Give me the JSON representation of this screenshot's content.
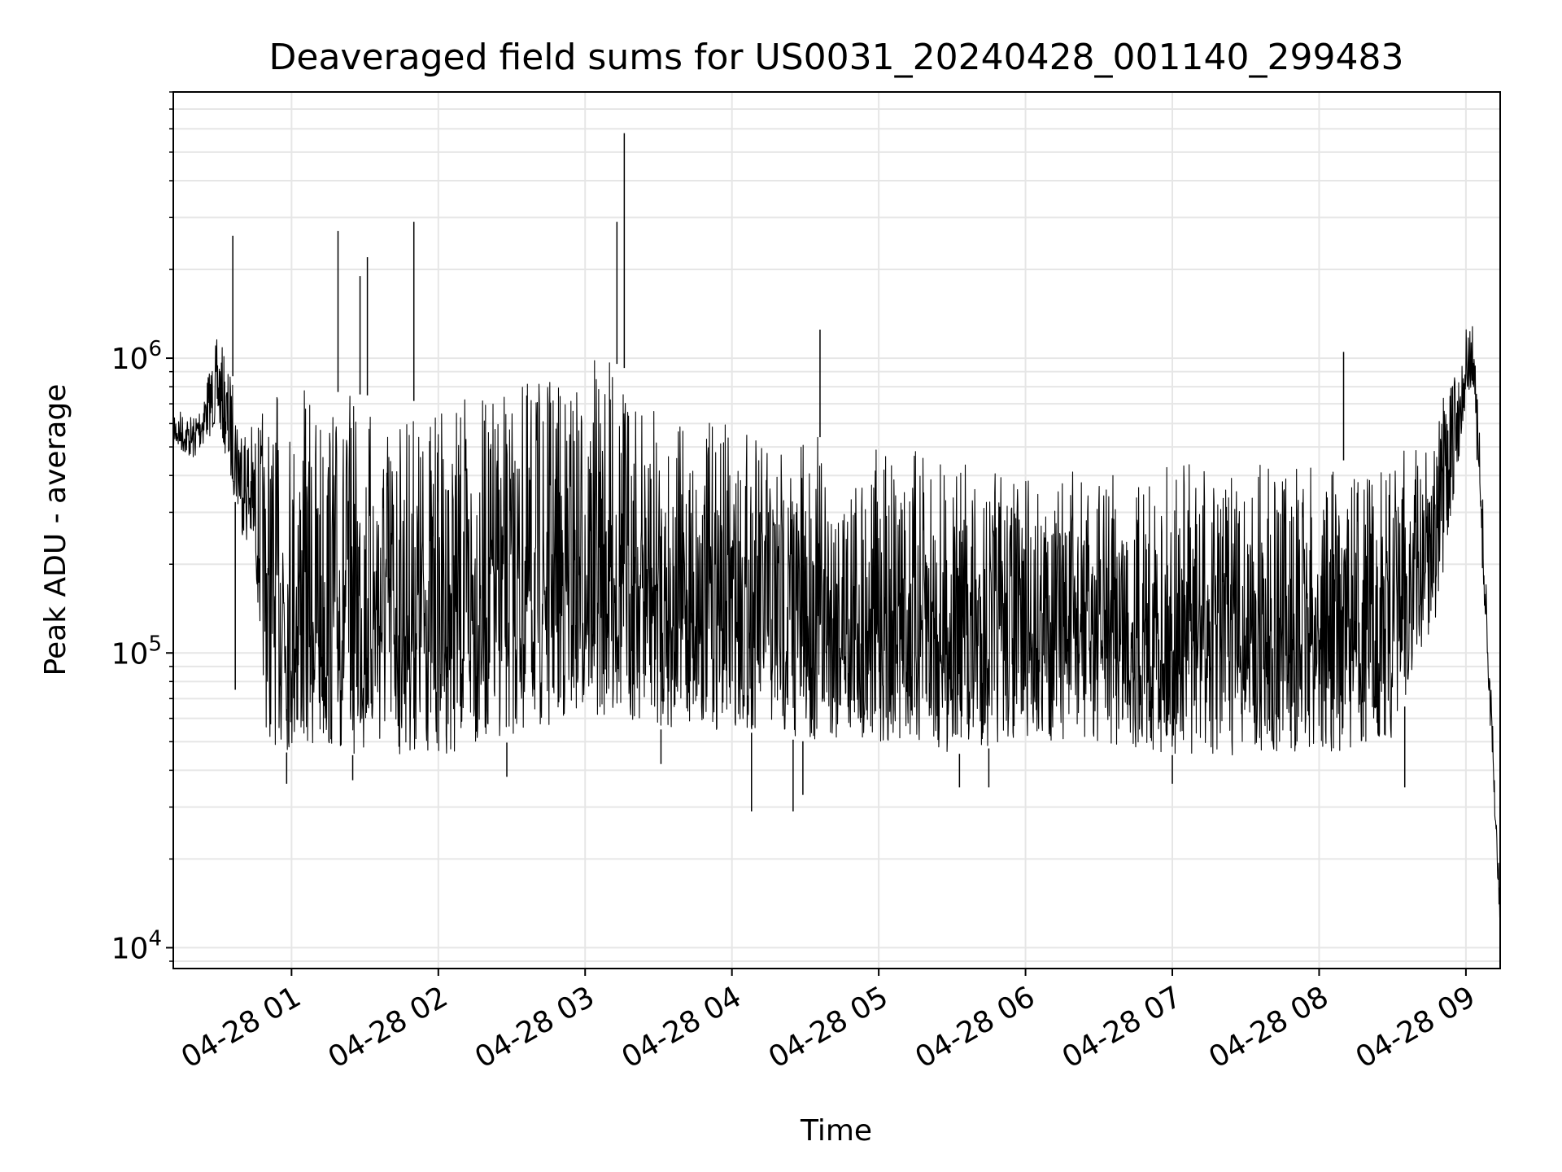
{
  "chart_data": {
    "type": "line",
    "title": "Deaveraged field sums for US0031_20240428_001140_299483",
    "xlabel": "Time",
    "ylabel": "Peak ADU - average",
    "x_range": [
      "2024-04-28 00:11:40",
      "2024-04-28 09:14:00"
    ],
    "ylim": [
      8500,
      8000000
    ],
    "yscale": "log",
    "grid": true,
    "x_ticks": [
      "2024-04-28 01:00",
      "2024-04-28 02:00",
      "2024-04-28 03:00",
      "2024-04-28 04:00",
      "2024-04-28 05:00",
      "2024-04-28 06:00",
      "2024-04-28 07:00",
      "2024-04-28 08:00",
      "2024-04-28 09:00"
    ],
    "x_tick_labels": [
      "04-28 01",
      "04-28 02",
      "04-28 03",
      "04-28 04",
      "04-28 05",
      "04-28 06",
      "04-28 07",
      "04-28 08",
      "04-28 09"
    ],
    "y_ticks": [
      10000,
      100000,
      1000000
    ],
    "y_tick_labels": [
      {
        "base": "10",
        "exp": "4"
      },
      {
        "base": "10",
        "exp": "5"
      },
      {
        "base": "10",
        "exp": "6"
      }
    ],
    "line_color": "#000000",
    "envelope": {
      "time": [
        "2024-04-28 00:11:40",
        "2024-04-28 00:20",
        "2024-04-28 00:30",
        "2024-04-28 00:40",
        "2024-04-28 00:45",
        "2024-04-28 00:50",
        "2024-04-28 01:00",
        "2024-04-28 01:30",
        "2024-04-28 02:00",
        "2024-04-28 02:30",
        "2024-04-28 03:00",
        "2024-04-28 03:15",
        "2024-04-28 03:30",
        "2024-04-28 04:00",
        "2024-04-28 04:30",
        "2024-04-28 05:00",
        "2024-04-28 05:30",
        "2024-04-28 06:00",
        "2024-04-28 06:30",
        "2024-04-28 07:00",
        "2024-04-28 07:30",
        "2024-04-28 08:00",
        "2024-04-28 08:30",
        "2024-04-28 08:50",
        "2024-04-28 09:00",
        "2024-04-28 09:03",
        "2024-04-28 09:06",
        "2024-04-28 09:14"
      ],
      "high": [
        700000,
        650000,
        1200000,
        700000,
        600000,
        750000,
        800000,
        750000,
        700000,
        800000,
        1000000,
        950000,
        650000,
        600000,
        550000,
        500000,
        470000,
        430000,
        420000,
        450000,
        430000,
        450000,
        450000,
        700000,
        1300000,
        1300000,
        500000,
        15000
      ],
      "low": [
        500000,
        450000,
        600000,
        250000,
        200000,
        50000,
        45000,
        45000,
        45000,
        50000,
        60000,
        60000,
        55000,
        55000,
        50000,
        50000,
        45000,
        50000,
        50000,
        45000,
        45000,
        45000,
        50000,
        150000,
        700000,
        800000,
        250000,
        11500
      ]
    },
    "spikes": [
      {
        "time": "2024-04-28 00:36",
        "value": 2600000
      },
      {
        "time": "2024-04-28 01:19",
        "value": 2700000
      },
      {
        "time": "2024-04-28 01:28",
        "value": 1900000
      },
      {
        "time": "2024-04-28 01:31",
        "value": 2200000
      },
      {
        "time": "2024-04-28 01:50",
        "value": 2900000
      },
      {
        "time": "2024-04-28 03:13",
        "value": 2900000
      },
      {
        "time": "2024-04-28 03:16",
        "value": 5800000
      },
      {
        "time": "2024-04-28 04:36",
        "value": 1250000
      },
      {
        "time": "2024-04-28 08:10",
        "value": 1050000
      }
    ],
    "dips": [
      {
        "time": "2024-04-28 00:37",
        "value": 75000
      },
      {
        "time": "2024-04-28 00:58",
        "value": 36000
      },
      {
        "time": "2024-04-28 01:25",
        "value": 37000
      },
      {
        "time": "2024-04-28 02:28",
        "value": 38000
      },
      {
        "time": "2024-04-28 03:31",
        "value": 42000
      },
      {
        "time": "2024-04-28 04:08",
        "value": 29000
      },
      {
        "time": "2024-04-28 04:25",
        "value": 29000
      },
      {
        "time": "2024-04-28 04:29",
        "value": 33000
      },
      {
        "time": "2024-04-28 05:33",
        "value": 35000
      },
      {
        "time": "2024-04-28 05:45",
        "value": 35000
      },
      {
        "time": "2024-04-28 07:00",
        "value": 36000
      },
      {
        "time": "2024-04-28 08:35",
        "value": 35000
      }
    ]
  }
}
